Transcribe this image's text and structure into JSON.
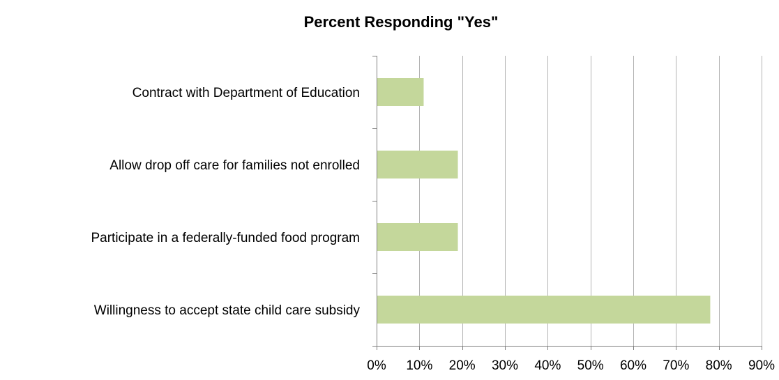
{
  "chart_data": {
    "type": "bar",
    "orientation": "horizontal",
    "title": "Percent  Responding \"Yes\"",
    "xlabel": "",
    "ylabel": "",
    "categories": [
      "Contract with Department of Education",
      "Allow drop off care for families not enrolled",
      "Participate in a federally-funded food program",
      "Willingness to accept state child care subsidy"
    ],
    "values": [
      0.11,
      0.19,
      0.19,
      0.78
    ],
    "xlim": [
      0,
      0.9
    ],
    "ticks": [
      0,
      0.1,
      0.2,
      0.3,
      0.4,
      0.5,
      0.6,
      0.7,
      0.8,
      0.9
    ],
    "tick_labels": [
      "0%",
      "10%",
      "20%",
      "30%",
      "40%",
      "50%",
      "60%",
      "70%",
      "80%",
      "90%"
    ],
    "grid": "vertical",
    "legend": "none",
    "colors": {
      "bar": "#c4d79b",
      "grid": "#b3b3b3",
      "axis": "#808080"
    }
  }
}
